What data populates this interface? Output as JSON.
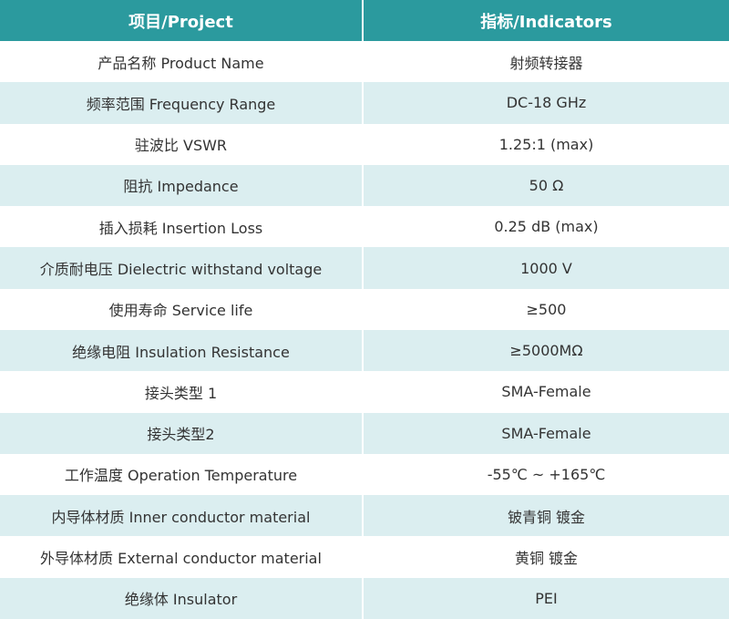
{
  "table": {
    "header": [
      "项目/Project",
      "指标/Indicators"
    ],
    "rows": [
      [
        "产品名称 Product Name",
        "射频转接器"
      ],
      [
        "频率范围 Frequency Range",
        "DC-18 GHz"
      ],
      [
        "驻波比 VSWR",
        "1.25:1 (max)"
      ],
      [
        "阻抗 Impedance",
        "50 Ω"
      ],
      [
        "插入损耗 Insertion Loss",
        "0.25 dB (max)"
      ],
      [
        "介质耐电压 Dielectric withstand voltage",
        "1000 V"
      ],
      [
        "使用寿命 Service life",
        "≥500"
      ],
      [
        "绝缘电阻 Insulation Resistance",
        "≥5000MΩ"
      ],
      [
        "接头类型 1",
        "SMA-Female"
      ],
      [
        "接头类型2",
        "SMA-Female"
      ],
      [
        "工作温度 Operation Temperature",
        "-55℃ ~ +165℃"
      ],
      [
        "内导体材质 Inner conductor material",
        "铍青铜 镀金"
      ],
      [
        "外导体材质 External conductor material",
        "黄铜 镀金"
      ],
      [
        "绝缘体 Insulator",
        "PEI"
      ]
    ]
  }
}
